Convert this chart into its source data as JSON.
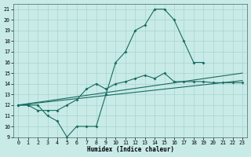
{
  "xlabel": "Humidex (Indice chaleur)",
  "background_color": "#c8ebe8",
  "grid_color": "#a8d4d0",
  "line_color": "#1a6b60",
  "xlim": [
    -0.5,
    23.5
  ],
  "ylim": [
    9,
    21.5
  ],
  "xticks": [
    0,
    1,
    2,
    3,
    4,
    5,
    6,
    7,
    8,
    9,
    10,
    11,
    12,
    13,
    14,
    15,
    16,
    17,
    18,
    19,
    20,
    21,
    22,
    23
  ],
  "yticks": [
    9,
    10,
    11,
    12,
    13,
    14,
    15,
    16,
    17,
    18,
    19,
    20,
    21
  ],
  "curve1_x": [
    0,
    1,
    2,
    3,
    4,
    5,
    6,
    7,
    8,
    9,
    10,
    11,
    12,
    13,
    14,
    15,
    16,
    17,
    18,
    19
  ],
  "curve1_y": [
    12,
    12,
    12,
    11,
    10.5,
    9,
    10,
    10,
    10,
    13,
    16,
    17,
    19,
    19.5,
    21,
    21,
    20,
    18,
    16,
    16
  ],
  "curve2_x": [
    0,
    1,
    2,
    3,
    4,
    5,
    6,
    7,
    8,
    9,
    10,
    11,
    12,
    13,
    14,
    15,
    16,
    17,
    18,
    19,
    20,
    21,
    22,
    23
  ],
  "curve2_y": [
    12,
    12,
    11.5,
    11.5,
    11.5,
    12,
    12.5,
    13.5,
    14,
    13.5,
    14,
    14.2,
    14.5,
    14.8,
    14.5,
    15,
    14.2,
    14.2,
    14.2,
    14.2,
    14.1,
    14.1,
    14.1,
    14.1
  ],
  "line3_x": [
    0,
    23
  ],
  "line3_y": [
    12,
    15
  ],
  "line4_x": [
    0,
    23
  ],
  "line4_y": [
    12,
    14.3
  ]
}
